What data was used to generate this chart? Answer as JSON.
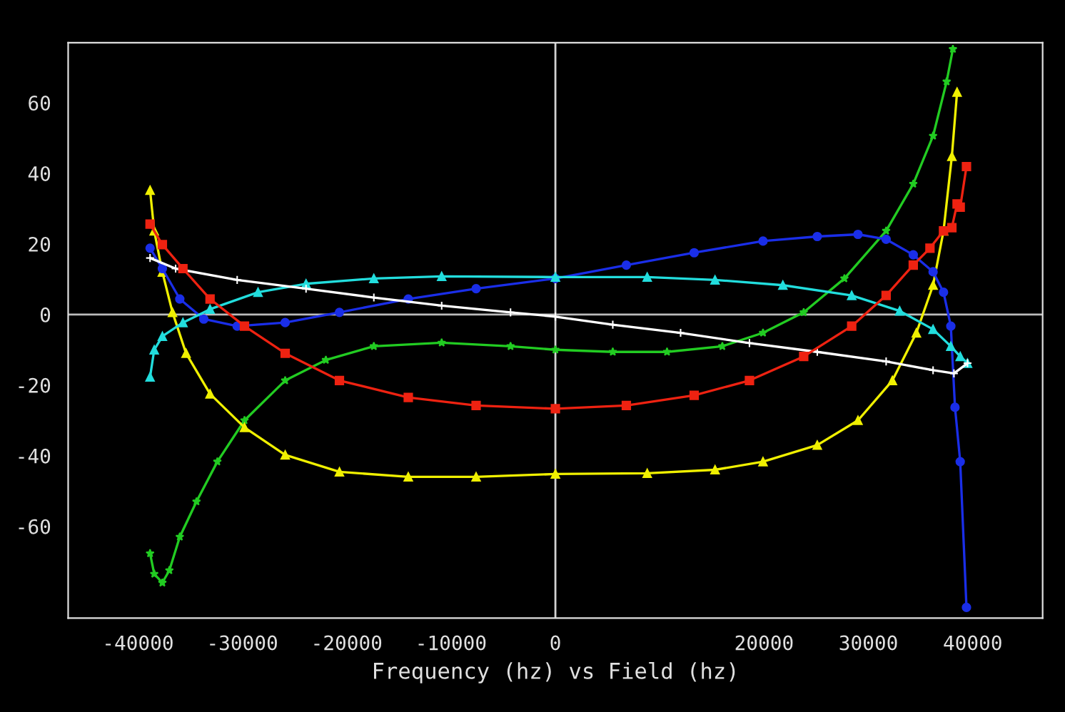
{
  "chart_data": {
    "type": "line",
    "xlabel": "Frequency (hz) vs Field (hz)",
    "xlim": [
      -46700,
      46700
    ],
    "ylim": [
      -86,
      77
    ],
    "xticks": [
      -40000,
      -30000,
      -20000,
      -10000,
      0,
      20000,
      30000,
      40000
    ],
    "yticks": [
      -60,
      -40,
      -20,
      0,
      20,
      40,
      60
    ],
    "grid": false,
    "line_style": "solid",
    "ref_lines": [
      {
        "axis": "x",
        "value": 0,
        "color": "#d2d2d2"
      },
      {
        "axis": "y",
        "value": 0,
        "color": "#bcbcbc"
      }
    ],
    "series": [
      {
        "color": "#22cc22",
        "marker": "star",
        "x": [
          -38850,
          -38450,
          -37670,
          -37000,
          -36000,
          -34400,
          -32400,
          -29800,
          -25900,
          -22000,
          -17400,
          -10900,
          -4300,
          0,
          5500,
          10700,
          16000,
          19900,
          23800,
          27700,
          31700,
          34300,
          36200,
          37500,
          38100
        ],
        "values": [
          -67.7,
          -73.5,
          -76,
          -72.5,
          -63,
          -53,
          -41.7,
          -30,
          -18.7,
          -12.9,
          -9,
          -8,
          -9,
          -10,
          -10.6,
          -10.6,
          -9,
          -5.2,
          0.6,
          10.2,
          23.7,
          37,
          50.6,
          66,
          75.2
        ]
      },
      {
        "color": "#f0f000",
        "marker": "triangle",
        "x": [
          -38850,
          -38450,
          -37670,
          -36700,
          -35400,
          -33100,
          -29800,
          -25900,
          -20700,
          -14100,
          -7600,
          0,
          8800,
          15300,
          19900,
          25100,
          29000,
          32300,
          34600,
          36200,
          37200,
          38000,
          38500
        ],
        "values": [
          35.2,
          23.7,
          12,
          0.6,
          -11,
          -22.5,
          -32,
          -39.8,
          -44.6,
          -46,
          -46,
          -45.2,
          -45,
          -44,
          -41.7,
          -37,
          -30,
          -18.7,
          -5.2,
          8.3,
          23.7,
          44.8,
          63
        ]
      },
      {
        "color": "#1a2ee8",
        "marker": "circle",
        "x": [
          -38850,
          -37670,
          -36000,
          -33700,
          -30500,
          -25900,
          -20700,
          -14100,
          -7600,
          0,
          6800,
          13300,
          19900,
          25100,
          29000,
          31700,
          34300,
          36200,
          37200,
          37900,
          38300,
          38800,
          39400
        ],
        "values": [
          18.8,
          13,
          4.4,
          -1.3,
          -3.3,
          -2.3,
          0.6,
          4.4,
          7.3,
          10.2,
          14,
          17.5,
          20.8,
          22.1,
          22.7,
          21.3,
          16.9,
          12.1,
          6.3,
          -3.3,
          -26.3,
          -41.7,
          -83
        ]
      },
      {
        "color": "#22dddd",
        "marker": "triangle",
        "x": [
          -38850,
          -38450,
          -37670,
          -35700,
          -33100,
          -28500,
          -23900,
          -17400,
          -10900,
          0,
          8800,
          15300,
          21800,
          28400,
          33000,
          36200,
          37900,
          38800,
          39500
        ],
        "values": [
          -17.7,
          -10,
          -6.2,
          -2.3,
          1.5,
          6.3,
          8.7,
          10.2,
          10.8,
          10.6,
          10.6,
          9.8,
          8.3,
          5.4,
          1,
          -4.2,
          -9,
          -11.9,
          -13.8
        ]
      },
      {
        "color": "#ffffff",
        "marker": "cross",
        "x": [
          -38850,
          -36400,
          -30500,
          -23900,
          -17400,
          -10900,
          -4300,
          0,
          5500,
          12000,
          18600,
          25100,
          31700,
          36200,
          38200,
          39500
        ],
        "values": [
          16,
          13,
          9.8,
          7.3,
          4.8,
          2.5,
          0.6,
          -0.6,
          -2.9,
          -5.2,
          -8.1,
          -10.6,
          -13.3,
          -15.8,
          -16.7,
          -13.8
        ]
      },
      {
        "color": "#ee2211",
        "marker": "square",
        "x": [
          -38850,
          -37670,
          -35700,
          -33100,
          -29800,
          -25900,
          -20700,
          -14100,
          -7600,
          0,
          6800,
          13300,
          18600,
          23800,
          28400,
          31700,
          34300,
          35900,
          37200,
          38000,
          38500,
          38800,
          39400
        ],
        "values": [
          25.6,
          19.8,
          13,
          4.4,
          -3.3,
          -11,
          -18.7,
          -23.5,
          -25.8,
          -26.7,
          -25.8,
          -22.9,
          -18.7,
          -11.9,
          -3.3,
          5.4,
          14,
          18.8,
          23.7,
          24.6,
          31.3,
          30.4,
          41.9
        ]
      }
    ]
  }
}
